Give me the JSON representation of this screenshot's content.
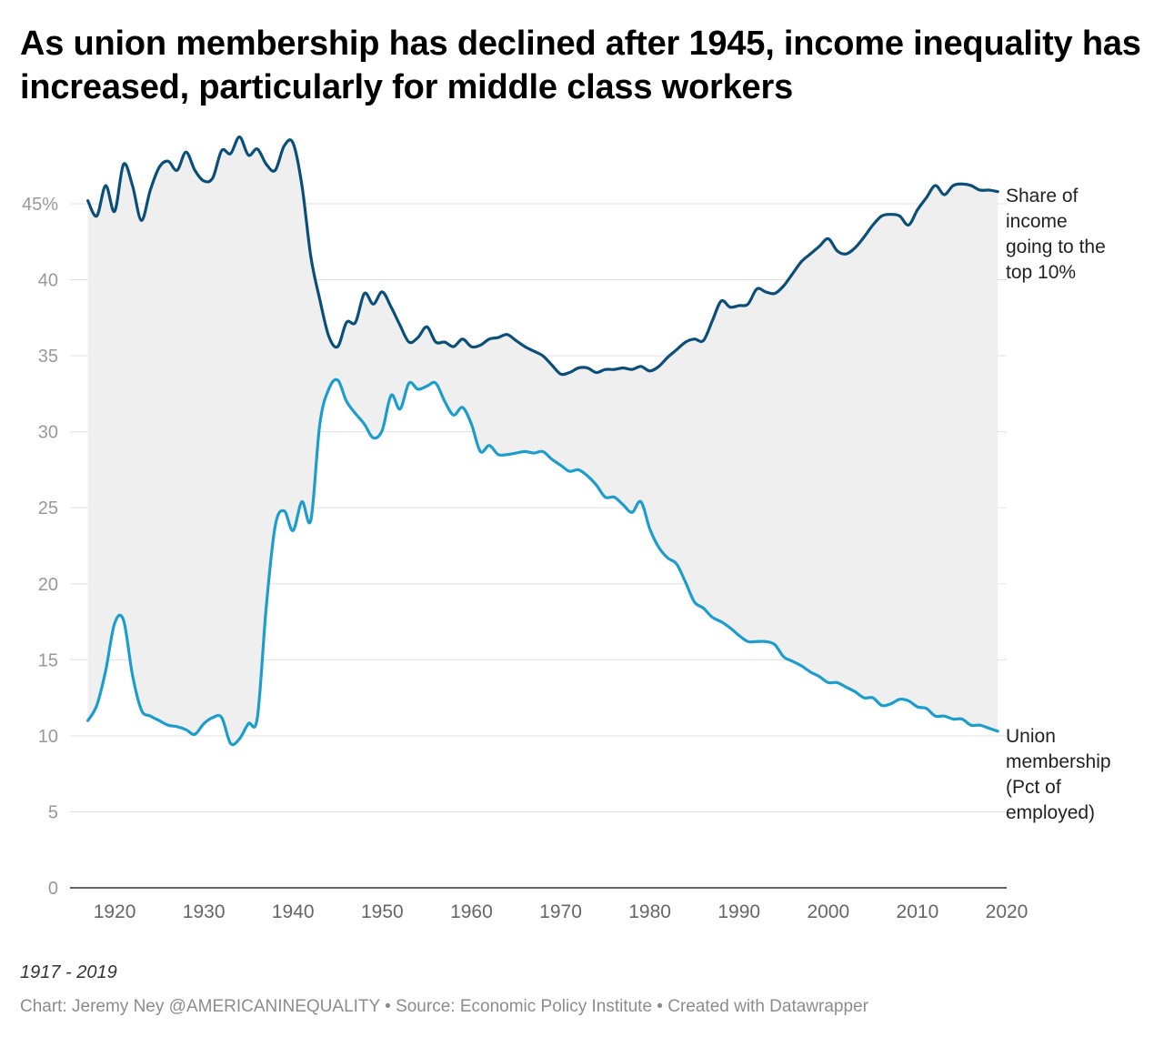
{
  "chart_data": {
    "type": "line",
    "title": "As union membership has declined after 1945, income inequality has increased, particularly for middle class workers",
    "subtitle": "",
    "note": "1917 - 2019",
    "credit": "Chart: Jeremy Ney @AMERICANINEQUALITY • Source: Economic Policy Institute • Created with Datawrapper",
    "xlim": [
      1915,
      2020
    ],
    "ylim": [
      0,
      50
    ],
    "x_ticks": [
      1920,
      1930,
      1940,
      1950,
      1960,
      1970,
      1980,
      1990,
      2000,
      2010,
      2020
    ],
    "y_ticks": [
      0,
      5,
      10,
      15,
      20,
      25,
      30,
      35,
      40,
      45
    ],
    "y_tick_labels": [
      "0",
      "5",
      "10",
      "15",
      "20",
      "25",
      "30",
      "35",
      "40",
      "45%"
    ],
    "grid": "horizontal",
    "fill_between_series": true,
    "series": [
      {
        "name": "Share of income going to the top 10%",
        "label_lines": [
          "Share of",
          "income",
          "going to the",
          "top 10%"
        ],
        "color": "#0b4f79",
        "x": [
          1917,
          1918,
          1919,
          1920,
          1921,
          1922,
          1923,
          1924,
          1925,
          1926,
          1927,
          1928,
          1929,
          1930,
          1931,
          1932,
          1933,
          1934,
          1935,
          1936,
          1937,
          1938,
          1939,
          1940,
          1941,
          1942,
          1943,
          1944,
          1945,
          1946,
          1947,
          1948,
          1949,
          1950,
          1951,
          1952,
          1953,
          1954,
          1955,
          1956,
          1957,
          1958,
          1959,
          1960,
          1961,
          1962,
          1963,
          1964,
          1965,
          1966,
          1967,
          1968,
          1969,
          1970,
          1971,
          1972,
          1973,
          1974,
          1975,
          1976,
          1977,
          1978,
          1979,
          1980,
          1981,
          1982,
          1983,
          1984,
          1985,
          1986,
          1987,
          1988,
          1989,
          1990,
          1991,
          1992,
          1993,
          1994,
          1995,
          1996,
          1997,
          1998,
          1999,
          2000,
          2001,
          2002,
          2003,
          2004,
          2005,
          2006,
          2007,
          2008,
          2009,
          2010,
          2011,
          2012,
          2013,
          2014,
          2015,
          2016,
          2017,
          2018,
          2019
        ],
        "values": [
          45.2,
          44.2,
          46.2,
          44.5,
          47.6,
          46.2,
          43.9,
          45.9,
          47.4,
          47.8,
          47.2,
          48.4,
          47.2,
          46.5,
          46.7,
          48.5,
          48.3,
          49.4,
          48.2,
          48.6,
          47.6,
          47.2,
          48.8,
          49.0,
          46.2,
          41.5,
          38.7,
          36.3,
          35.6,
          37.2,
          37.2,
          39.1,
          38.4,
          39.2,
          38.2,
          37.0,
          35.9,
          36.2,
          36.9,
          35.9,
          35.9,
          35.6,
          36.1,
          35.6,
          35.7,
          36.1,
          36.2,
          36.4,
          36.0,
          35.6,
          35.3,
          35.0,
          34.4,
          33.8,
          33.9,
          34.2,
          34.2,
          33.9,
          34.1,
          34.1,
          34.2,
          34.1,
          34.3,
          34.0,
          34.3,
          34.9,
          35.4,
          35.9,
          36.1,
          36.0,
          37.3,
          38.6,
          38.2,
          38.3,
          38.4,
          39.4,
          39.2,
          39.1,
          39.6,
          40.4,
          41.2,
          41.7,
          42.2,
          42.7,
          41.9,
          41.7,
          42.1,
          42.8,
          43.6,
          44.2,
          44.3,
          44.2,
          43.6,
          44.6,
          45.4,
          46.2,
          45.6,
          46.2,
          46.3,
          46.2,
          45.9,
          45.9,
          45.8
        ]
      },
      {
        "name": "Union membership (Pct of employed)",
        "label_lines": [
          "Union",
          "membership",
          "(Pct of",
          "employed)"
        ],
        "color": "#1c9dcc",
        "x": [
          1917,
          1918,
          1919,
          1920,
          1921,
          1922,
          1923,
          1924,
          1925,
          1926,
          1927,
          1928,
          1929,
          1930,
          1931,
          1932,
          1933,
          1934,
          1935,
          1936,
          1937,
          1938,
          1939,
          1940,
          1941,
          1942,
          1943,
          1944,
          1945,
          1946,
          1947,
          1948,
          1949,
          1950,
          1951,
          1952,
          1953,
          1954,
          1955,
          1956,
          1957,
          1958,
          1959,
          1960,
          1961,
          1962,
          1963,
          1964,
          1965,
          1966,
          1967,
          1968,
          1969,
          1970,
          1971,
          1972,
          1973,
          1974,
          1975,
          1976,
          1977,
          1978,
          1979,
          1980,
          1981,
          1982,
          1983,
          1984,
          1985,
          1986,
          1987,
          1988,
          1989,
          1990,
          1991,
          1992,
          1993,
          1994,
          1995,
          1996,
          1997,
          1998,
          1999,
          2000,
          2001,
          2002,
          2003,
          2004,
          2005,
          2006,
          2007,
          2008,
          2009,
          2010,
          2011,
          2012,
          2013,
          2014,
          2015,
          2016,
          2017,
          2018,
          2019
        ],
        "values": [
          11.0,
          12.0,
          14.3,
          17.4,
          17.6,
          14.0,
          11.7,
          11.3,
          11.0,
          10.7,
          10.6,
          10.4,
          10.1,
          10.8,
          11.2,
          11.2,
          9.5,
          9.8,
          10.8,
          11.2,
          18.5,
          23.8,
          24.8,
          23.5,
          25.4,
          24.2,
          30.5,
          32.8,
          33.4,
          32.0,
          31.2,
          30.5,
          29.6,
          30.1,
          32.4,
          31.5,
          33.2,
          32.8,
          33.0,
          33.2,
          32.0,
          31.1,
          31.6,
          30.5,
          28.7,
          29.1,
          28.5,
          28.5,
          28.6,
          28.7,
          28.6,
          28.7,
          28.2,
          27.8,
          27.4,
          27.5,
          27.1,
          26.5,
          25.7,
          25.7,
          25.2,
          24.7,
          25.4,
          23.6,
          22.4,
          21.7,
          21.3,
          20.1,
          18.8,
          18.4,
          17.8,
          17.5,
          17.1,
          16.6,
          16.2,
          16.2,
          16.2,
          16.0,
          15.2,
          14.9,
          14.6,
          14.2,
          13.9,
          13.5,
          13.5,
          13.2,
          12.9,
          12.5,
          12.5,
          12.0,
          12.1,
          12.4,
          12.3,
          11.9,
          11.8,
          11.3,
          11.3,
          11.1,
          11.1,
          10.7,
          10.7,
          10.5,
          10.3
        ]
      }
    ]
  }
}
